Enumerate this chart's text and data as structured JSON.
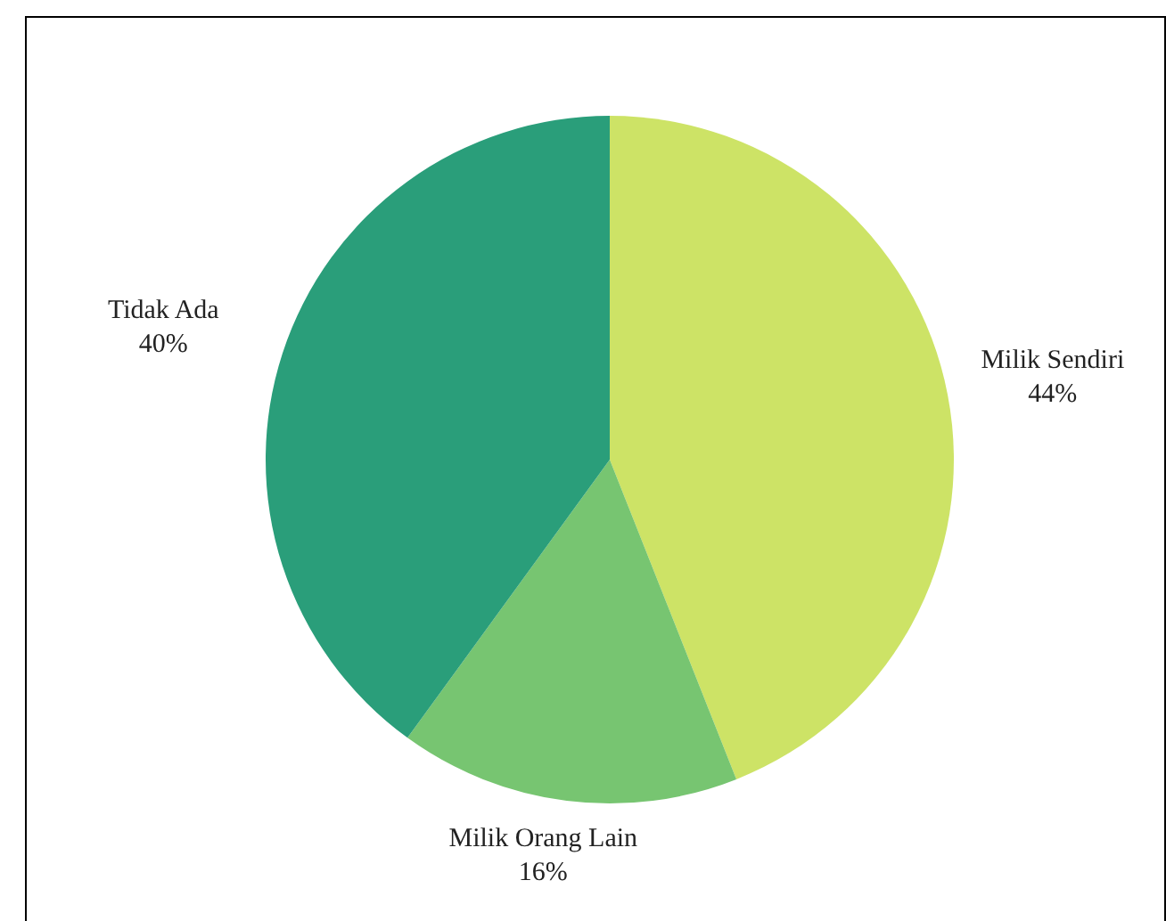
{
  "chart_data": {
    "type": "pie",
    "categories": [
      "Milik Sendiri",
      "Milik Orang Lain",
      "Tidak Ada"
    ],
    "values": [
      44,
      16,
      40
    ],
    "value_labels": [
      "44%",
      "16%",
      "40%"
    ],
    "colors": [
      "#cde366",
      "#77c571",
      "#2a9e7a"
    ],
    "legend": false
  }
}
